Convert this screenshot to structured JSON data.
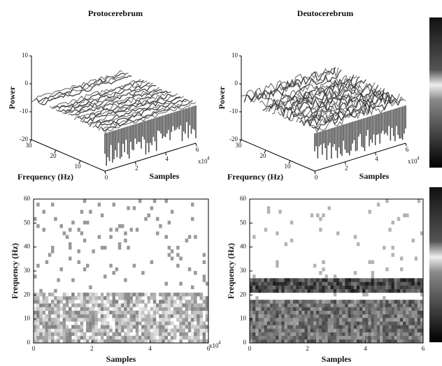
{
  "chart_data": [
    {
      "type": "surface",
      "title": "Protocerebrum",
      "zlabel": "Power",
      "ylabel": "Frequency (Hz)",
      "xlabel": "Samples",
      "x_scale": "x10",
      "x_scale_exp": "4",
      "zlim": [
        -20,
        10
      ],
      "zticks": [
        -20,
        -10,
        0,
        10
      ],
      "ylim": [
        0,
        30
      ],
      "yticks": [
        10,
        20,
        30
      ],
      "xlim": [
        0,
        6
      ],
      "xticks": [
        0,
        2,
        4,
        6
      ]
    },
    {
      "type": "surface",
      "title": "Deutocerebrum",
      "zlabel": "Power",
      "ylabel": "Frequency (Hz)",
      "xlabel": "Samples",
      "x_scale": "x10",
      "x_scale_exp": "4",
      "zlim": [
        -20,
        10
      ],
      "zticks": [
        -20,
        -10,
        0,
        10
      ],
      "ylim": [
        0,
        30
      ],
      "yticks": [
        10,
        20,
        30
      ],
      "xlim": [
        0,
        6
      ],
      "xticks": [
        0,
        2,
        4,
        6
      ]
    },
    {
      "type": "spectrogram",
      "ylabel": "Frequency (Hz)",
      "xlabel": "Samples",
      "x_scale": "x10",
      "x_scale_exp": "4",
      "ylim": [
        0,
        60
      ],
      "yticks": [
        0,
        10,
        20,
        30,
        40,
        50,
        60
      ],
      "xlim": [
        0,
        6
      ],
      "xticks": [
        0,
        2,
        4,
        6
      ]
    },
    {
      "type": "spectrogram",
      "ylabel": "Frequency (Hz)",
      "xlabel": "Samples",
      "ylim": [
        0,
        60
      ],
      "yticks": [
        0,
        10,
        20,
        30,
        40,
        50,
        60
      ],
      "xlim": [
        0,
        6
      ],
      "xticks": [
        0,
        2,
        4,
        6
      ]
    }
  ]
}
